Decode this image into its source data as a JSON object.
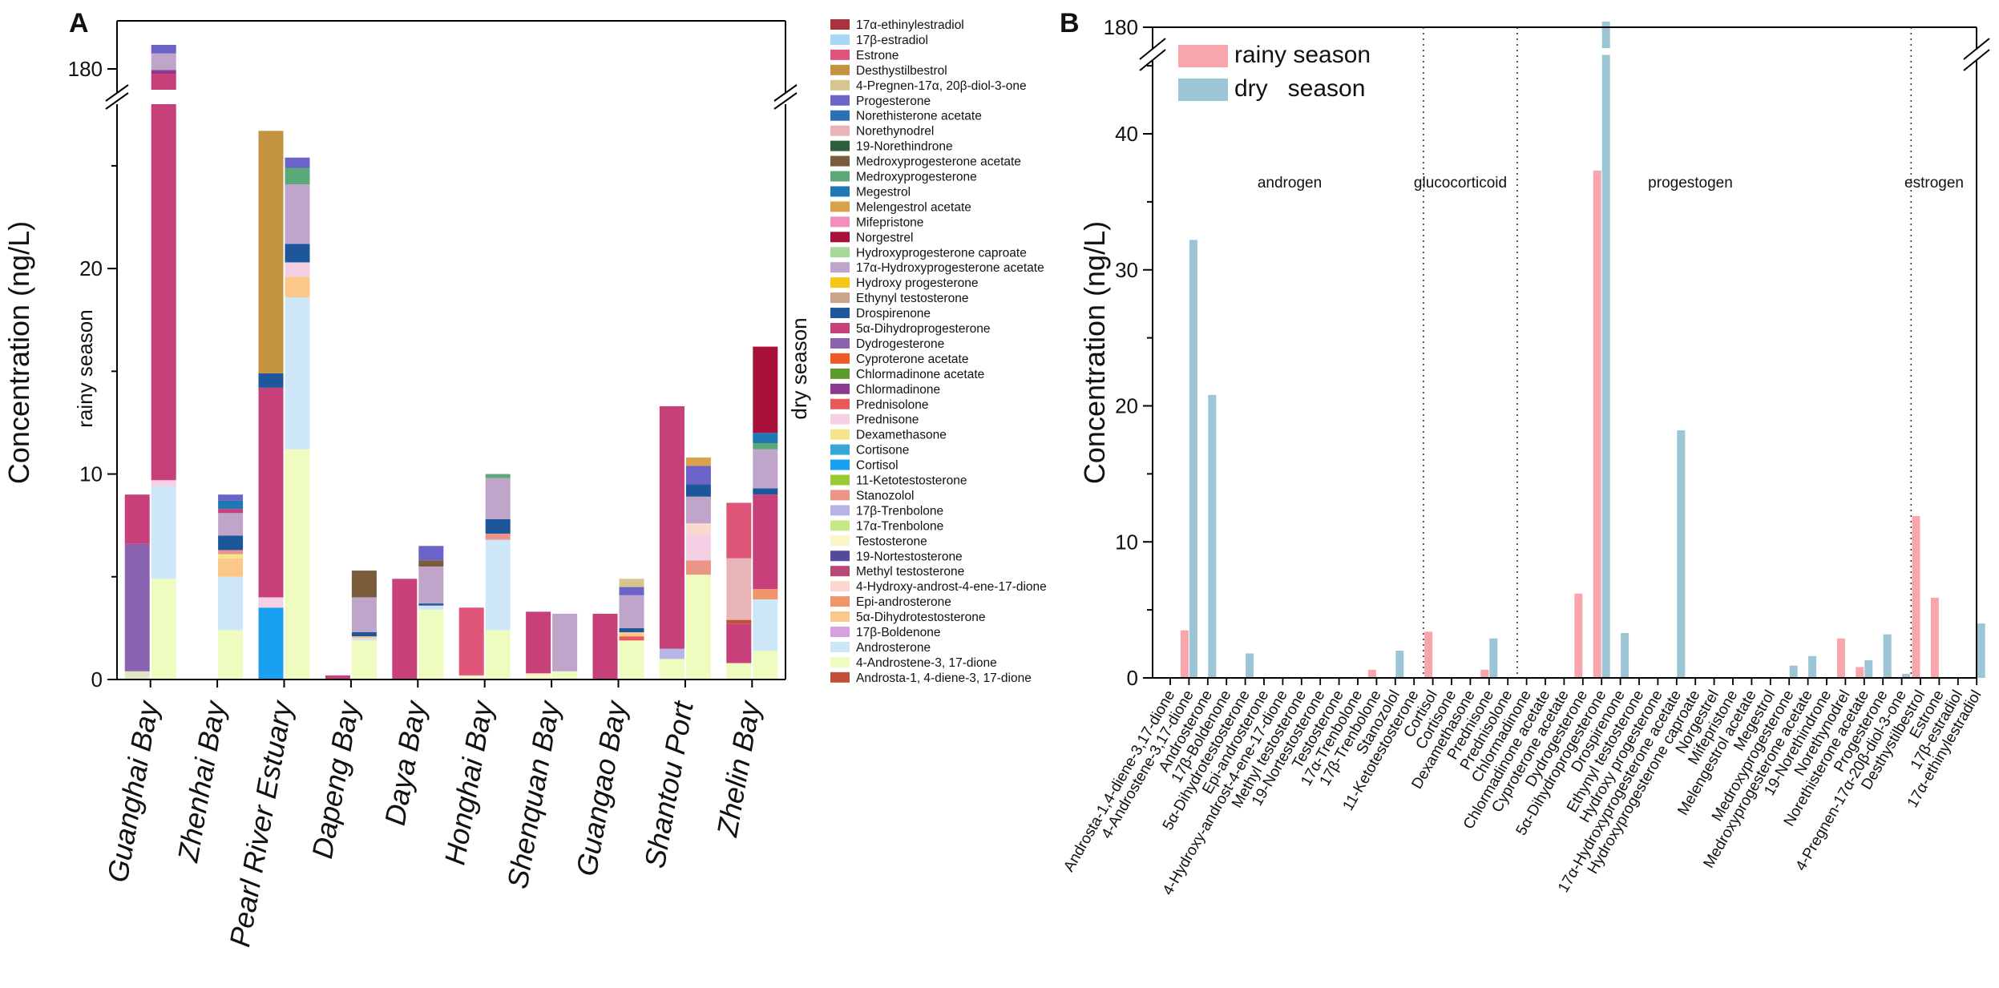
{
  "panel_a": {
    "label": "A",
    "ylabel": "Concentration (ng/L)",
    "rainy_label": "rainy season",
    "dry_label": "dry season"
  },
  "panel_b": {
    "label": "B"
  },
  "chart_data": [
    {
      "type": "bar",
      "subtype": "stacked",
      "title": "A",
      "xlabel": "",
      "ylabel": "Concentration (ng/L)",
      "y_break": [
        28,
        178
      ],
      "ylim": [
        0,
        184
      ],
      "yticks": [
        0,
        10,
        20,
        180
      ],
      "categories": [
        "Guanghai Bay",
        "Zhenhai Bay",
        "Pearl River Estuary",
        "Dapeng Bay",
        "Daya Bay",
        "Honghai Bay",
        "Shenquan Bay",
        "Guangao Bay",
        "Shantou Port",
        "Zhelin Bay"
      ],
      "series_legend": [
        {
          "name": "17α-ethinylestradiol",
          "color": "#a8323e"
        },
        {
          "name": "17β-estradiol",
          "color": "#a6d5f5"
        },
        {
          "name": "Estrone",
          "color": "#e0567a"
        },
        {
          "name": "Desthystilbestrol",
          "color": "#c49340"
        },
        {
          "name": "4-Pregnen-17α, 20β-diol-3-one",
          "color": "#d8c48e"
        },
        {
          "name": "Progesterone",
          "color": "#6c63c9"
        },
        {
          "name": "Norethisterone acetate",
          "color": "#2d6fb6"
        },
        {
          "name": "Norethynodrel",
          "color": "#e8b4b8"
        },
        {
          "name": "19-Norethindrone",
          "color": "#2a5e3c"
        },
        {
          "name": "Medroxyprogesterone acetate",
          "color": "#7a5b3a"
        },
        {
          "name": "Medroxyprogesterone",
          "color": "#5ba878"
        },
        {
          "name": "Megestrol",
          "color": "#1f78b4"
        },
        {
          "name": "Melengestrol acetate",
          "color": "#d9a24b"
        },
        {
          "name": "Mifepristone",
          "color": "#f08fbb"
        },
        {
          "name": "Norgestrel",
          "color": "#a8123a"
        },
        {
          "name": "Hydroxyprogesterone caproate",
          "color": "#a8d89a"
        },
        {
          "name": "17α-Hydroxyprogesterone acetate",
          "color": "#c0a5cb"
        },
        {
          "name": "Hydroxy progesterone",
          "color": "#f5c518"
        },
        {
          "name": "Ethynyl testosterone",
          "color": "#c9a48a"
        },
        {
          "name": "Drospirenone",
          "color": "#1d569a"
        },
        {
          "name": "5α-Dihydroprogesterone",
          "color": "#c8407a"
        },
        {
          "name": "Dydrogesterone",
          "color": "#8a63b0"
        },
        {
          "name": "Cyproterone acetate",
          "color": "#f05a28"
        },
        {
          "name": "Chlormadinone acetate",
          "color": "#5e9a2a"
        },
        {
          "name": "Chlormadinone",
          "color": "#8d3a8e"
        },
        {
          "name": "Prednisolone",
          "color": "#e85a5a"
        },
        {
          "name": "Prednisone",
          "color": "#f5d0e5"
        },
        {
          "name": "Dexamethasone",
          "color": "#f5e58a"
        },
        {
          "name": "Cortisone",
          "color": "#3aa6d8"
        },
        {
          "name": "Cortisol",
          "color": "#1aa0f0"
        },
        {
          "name": "11-Ketotestosterone",
          "color": "#9ac832"
        },
        {
          "name": "Stanozolol",
          "color": "#ea9588"
        },
        {
          "name": "17β-Trenbolone",
          "color": "#b5b5e8"
        },
        {
          "name": "17α-Trenbolone",
          "color": "#c8e887"
        },
        {
          "name": "Testosterone",
          "color": "#fcf5c8"
        },
        {
          "name": "19-Nortestosterone",
          "color": "#524a9a"
        },
        {
          "name": "Methyl testosterone",
          "color": "#b84a7a"
        },
        {
          "name": "4-Hydroxy-androst-4-ene-17-dione",
          "color": "#fbd8d0"
        },
        {
          "name": "Epi-androsterone",
          "color": "#f0956a"
        },
        {
          "name": "5α-Dihydrotestosterone",
          "color": "#fbc88a"
        },
        {
          "name": "17β-Boldenone",
          "color": "#d8a0e0"
        },
        {
          "name": "Androsterone",
          "color": "#cde6f8"
        },
        {
          "name": "4-Androstene-3, 17-dione",
          "color": "#eefcc0"
        },
        {
          "name": "Androsta-1, 4-diene-3, 17-dione",
          "color": "#c0503a"
        }
      ],
      "stacks": [
        {
          "site": "Guanghai Bay",
          "season": "rainy",
          "segments": [
            [
              "#e0e8c8",
              0,
              0.4
            ],
            [
              "#8a63b0",
              0.4,
              6.6
            ],
            [
              "#c8407a",
              6.6,
              9.0
            ]
          ]
        },
        {
          "site": "Guanghai Bay",
          "season": "dry",
          "segments": [
            [
              "#eefcc0",
              0,
              4.9
            ],
            [
              "#cde6f8",
              4.9,
              9.4
            ],
            [
              "#f5d0e5",
              9.4,
              9.7
            ],
            [
              "#c8407a",
              9.7,
              179.6
            ],
            [
              "#8d3a8e",
              179.6,
              179.9
            ],
            [
              "#c0a5cb",
              179.9,
              181.3
            ],
            [
              "#6c63c9",
              181.3,
              182.0
            ]
          ]
        },
        {
          "site": "Zhenhai Bay",
          "season": "dry",
          "segments": [
            [
              "#eefcc0",
              0,
              2.4
            ],
            [
              "#cde6f8",
              2.4,
              5.0
            ],
            [
              "#fbc88a",
              5.0,
              5.9
            ],
            [
              "#f5e58a",
              5.9,
              6.1
            ],
            [
              "#ea9588",
              6.1,
              6.3
            ],
            [
              "#1d569a",
              6.3,
              7.0
            ],
            [
              "#c0a5cb",
              7.0,
              8.1
            ],
            [
              "#c8407a",
              8.1,
              8.3
            ],
            [
              "#1f78b4",
              8.3,
              8.7
            ],
            [
              "#6c63c9",
              8.7,
              9.0
            ]
          ]
        },
        {
          "site": "Pearl River Estuary",
          "season": "rainy",
          "segments": [
            [
              "#1aa0f0",
              0,
              3.5
            ],
            [
              "#f5d0e5",
              3.5,
              4.0
            ],
            [
              "#c8407a",
              4.0,
              14.2
            ],
            [
              "#1d569a",
              14.2,
              14.9
            ],
            [
              "#c49340",
              14.9,
              26.7
            ]
          ]
        },
        {
          "site": "Pearl River Estuary",
          "season": "dry",
          "segments": [
            [
              "#eefcc0",
              0,
              11.2
            ],
            [
              "#cde6f8",
              11.2,
              18.6
            ],
            [
              "#fbc88a",
              18.6,
              19.6
            ],
            [
              "#f5d0e5",
              19.6,
              20.3
            ],
            [
              "#1d569a",
              20.3,
              21.2
            ],
            [
              "#c0a5cb",
              21.2,
              24.1
            ],
            [
              "#5ba878",
              24.1,
              24.9
            ],
            [
              "#6c63c9",
              24.9,
              25.4
            ]
          ]
        },
        {
          "site": "Dapeng Bay",
          "season": "rainy",
          "segments": [
            [
              "#c8407a",
              0,
              0.2
            ]
          ]
        },
        {
          "site": "Dapeng Bay",
          "season": "dry",
          "segments": [
            [
              "#eefcc0",
              0,
              1.9
            ],
            [
              "#cde6f8",
              1.9,
              2.0
            ],
            [
              "#fbc88a",
              2.0,
              2.1
            ],
            [
              "#1d569a",
              2.1,
              2.3
            ],
            [
              "#c0a5cb",
              2.3,
              4.0
            ],
            [
              "#7a5b3a",
              4.0,
              5.3
            ]
          ]
        },
        {
          "site": "Daya Bay",
          "season": "rainy",
          "segments": [
            [
              "#c8407a",
              0,
              4.9
            ]
          ]
        },
        {
          "site": "Daya Bay",
          "season": "dry",
          "segments": [
            [
              "#eefcc0",
              0,
              3.4
            ],
            [
              "#cde6f8",
              3.4,
              3.6
            ],
            [
              "#1d569a",
              3.6,
              3.7
            ],
            [
              "#c0a5cb",
              3.7,
              5.5
            ],
            [
              "#7a5b3a",
              5.5,
              5.8
            ],
            [
              "#6c63c9",
              5.8,
              6.5
            ]
          ]
        },
        {
          "site": "Honghai Bay",
          "season": "rainy",
          "segments": [
            [
              "#fcf5c8",
              0,
              0.2
            ],
            [
              "#e0567a",
              0.2,
              3.5
            ]
          ]
        },
        {
          "site": "Honghai Bay",
          "season": "dry",
          "segments": [
            [
              "#eefcc0",
              0,
              2.4
            ],
            [
              "#cde6f8",
              2.4,
              6.8
            ],
            [
              "#ea9588",
              6.8,
              7.1
            ],
            [
              "#1d569a",
              7.1,
              7.8
            ],
            [
              "#c0a5cb",
              7.8,
              9.8
            ],
            [
              "#5ba878",
              9.8,
              10.0
            ]
          ]
        },
        {
          "site": "Shenquan Bay",
          "season": "rainy",
          "segments": [
            [
              "#fcf5c8",
              0,
              0.3
            ],
            [
              "#c8407a",
              0.3,
              3.3
            ]
          ]
        },
        {
          "site": "Shenquan Bay",
          "season": "dry",
          "segments": [
            [
              "#eefcc0",
              0,
              0.4
            ],
            [
              "#c0a5cb",
              0.4,
              3.2
            ]
          ]
        },
        {
          "site": "Guangao Bay",
          "season": "rainy",
          "segments": [
            [
              "#c8407a",
              0,
              3.2
            ]
          ]
        },
        {
          "site": "Guangao Bay",
          "season": "dry",
          "segments": [
            [
              "#eefcc0",
              0,
              1.9
            ],
            [
              "#e85a5a",
              1.9,
              2.1
            ],
            [
              "#fbc88a",
              2.1,
              2.3
            ],
            [
              "#1d569a",
              2.3,
              2.5
            ],
            [
              "#c0a5cb",
              2.5,
              4.1
            ],
            [
              "#6c63c9",
              4.1,
              4.5
            ],
            [
              "#d8c48e",
              4.5,
              4.9
            ]
          ]
        },
        {
          "site": "Shantou Port",
          "season": "rainy",
          "segments": [
            [
              "#eefcc0",
              0,
              1.0
            ],
            [
              "#b5b5e8",
              1.0,
              1.5
            ],
            [
              "#c8407a",
              1.5,
              13.3
            ]
          ]
        },
        {
          "site": "Shantou Port",
          "season": "dry",
          "segments": [
            [
              "#eefcc0",
              0,
              5.1
            ],
            [
              "#ea9588",
              5.1,
              5.8
            ],
            [
              "#f5d0e5",
              5.8,
              7.0
            ],
            [
              "#fbd8d0",
              7.0,
              7.6
            ],
            [
              "#c0a5cb",
              7.6,
              8.9
            ],
            [
              "#1d569a",
              8.9,
              9.5
            ],
            [
              "#6c63c9",
              9.5,
              10.4
            ],
            [
              "#d9a24b",
              10.4,
              10.8
            ]
          ]
        },
        {
          "site": "Zhelin Bay",
          "season": "rainy",
          "segments": [
            [
              "#eefcc0",
              0,
              0.8
            ],
            [
              "#c8407a",
              0.8,
              2.7
            ],
            [
              "#c0503a",
              2.7,
              2.9
            ],
            [
              "#e8b4b8",
              2.9,
              5.9
            ],
            [
              "#e0567a",
              5.9,
              8.6
            ]
          ]
        },
        {
          "site": "Zhelin Bay",
          "season": "dry",
          "segments": [
            [
              "#eefcc0",
              0,
              1.4
            ],
            [
              "#cde6f8",
              1.4,
              3.9
            ],
            [
              "#f0956a",
              3.9,
              4.4
            ],
            [
              "#c8407a",
              4.4,
              9.0
            ],
            [
              "#1d569a",
              9.0,
              9.3
            ],
            [
              "#c0a5cb",
              9.3,
              11.2
            ],
            [
              "#5ba878",
              11.2,
              11.5
            ],
            [
              "#1f78b4",
              11.5,
              12.0
            ],
            [
              "#a8123a",
              12.0,
              16.2
            ]
          ]
        }
      ]
    },
    {
      "type": "bar",
      "title": "B",
      "xlabel": "",
      "ylabel": "Concentration (ng/L)",
      "y_break": [
        47,
        178
      ],
      "ylim": [
        0,
        180
      ],
      "yticks": [
        0,
        10,
        20,
        30,
        40,
        180
      ],
      "legend_position": "top-left",
      "group_labels": [
        "androgen",
        "glucocorticoid",
        "progestogen",
        "estrogen"
      ],
      "categories": [
        "Androsta-1,4-diene-3,17-dione",
        "4-Androstene-3,17-dione",
        "Androsterone",
        "17β-Boldenone",
        "5α-Dihydrotestosterone",
        "Epi-androsterone",
        "4-Hydroxy-androst-4-ene-17-dione",
        "Methyl testosterone",
        "19-Nortestosterone",
        "Testosterone",
        "17α-Trenbolone",
        "17β-Trenbolone",
        "Stanozolol",
        "11-Ketotestosterone",
        "Cortisol",
        "Cortisone",
        "Dexamethasone",
        "Prednisone",
        "Prednisolone",
        "Chlormadinone",
        "Chlormadinone acetate",
        "Cyproterone acetate",
        "Dydrogesterone",
        "5α-Dihydroprogesterone",
        "Drospirenone",
        "Ethynyl testosterone",
        "Hydroxy progesterone",
        "17α-Hydroxyprogesterone acetate",
        "Hydroxyprogesterone caproate",
        "Norgestrel",
        "Mifepristone",
        "Melengestrol acetate",
        "Megestrol",
        "Medroxyprogesterone",
        "Medroxyprogesterone acetate",
        "19-Norethindrone",
        "Norethynodrel",
        "Norethisterone acetate",
        "Progesterone",
        "4-Pregnen-17α-20β-diol-3-one",
        "Desthystilbestrol",
        "Estrone",
        "17β-estradiol",
        "17α-ethinylestradiol"
      ],
      "series": [
        {
          "name": "rainy season",
          "color": "#f9a5ac",
          "values": [
            0,
            3.5,
            0,
            0,
            0,
            0,
            0,
            0,
            0,
            0,
            0,
            0.6,
            0,
            0,
            3.4,
            0,
            0,
            0.6,
            0,
            0,
            0,
            0,
            6.2,
            37.3,
            0,
            0,
            0,
            0,
            0,
            0,
            0,
            0,
            0,
            0,
            0,
            0,
            2.9,
            0.8,
            0,
            0,
            11.9,
            5.9,
            0,
            0
          ]
        },
        {
          "name": "dry   season",
          "color": "#9cc5d6",
          "values": [
            0,
            32.2,
            20.8,
            0,
            1.8,
            0,
            0,
            0,
            0,
            0,
            0,
            0,
            2.0,
            0,
            0,
            0,
            0,
            2.9,
            0,
            0,
            0,
            0,
            0,
            180.5,
            3.3,
            0,
            0,
            18.2,
            0,
            0,
            0,
            0,
            0,
            0.9,
            1.6,
            0,
            0,
            1.3,
            3.2,
            0.3,
            0,
            0,
            0,
            4.0
          ]
        }
      ]
    }
  ]
}
